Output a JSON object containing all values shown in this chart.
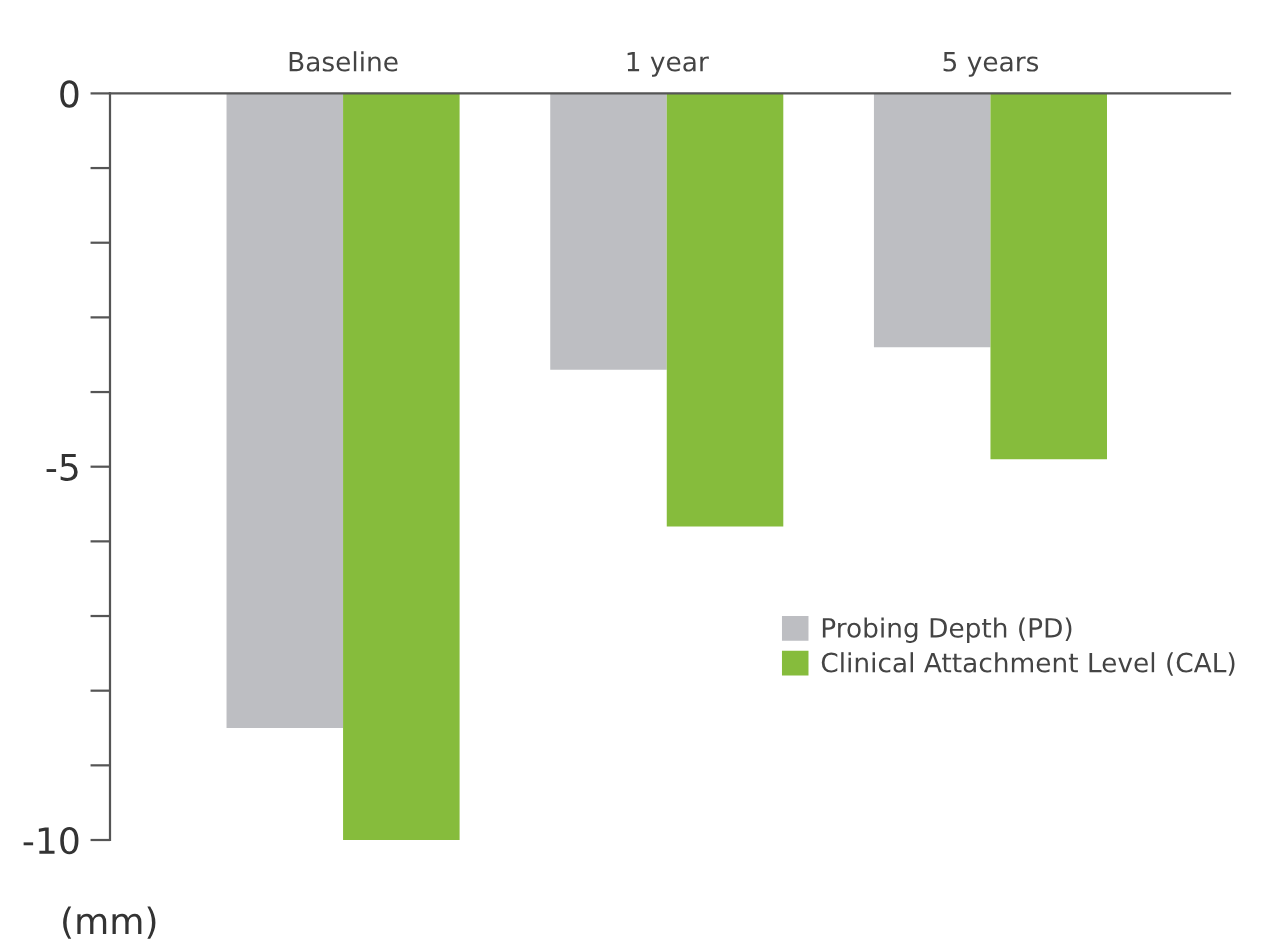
{
  "chart_data": {
    "type": "bar",
    "ylabel": "(mm)",
    "categories": [
      "Baseline",
      "1 year",
      "5 years"
    ],
    "series": [
      {
        "name": "Probing Depth (PD)",
        "color": "#bdbec2",
        "values": [
          -8.5,
          -3.7,
          -3.4
        ]
      },
      {
        "name": "Clinical Attachment Level (CAL)",
        "color": "#86bc3c",
        "values": [
          -10,
          -5.8,
          -4.9
        ]
      }
    ],
    "ylim": [
      -10,
      0
    ],
    "yticks": [
      0,
      {
        "value": -1,
        "label": null
      },
      {
        "value": -2,
        "label": null
      },
      {
        "value": -3,
        "label": null
      },
      {
        "value": -4,
        "label": null
      },
      -5,
      {
        "value": -6,
        "label": null
      },
      {
        "value": -7,
        "label": null
      },
      {
        "value": -8,
        "label": null
      },
      {
        "value": -9,
        "label": null
      },
      -10
    ],
    "grid": false,
    "legend": "right"
  }
}
